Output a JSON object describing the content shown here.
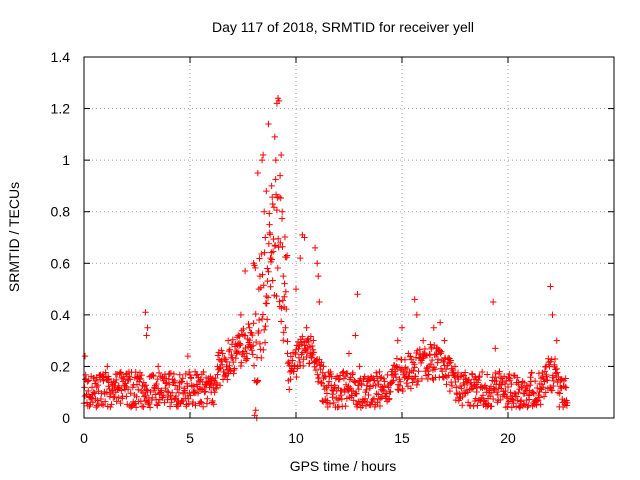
{
  "chart_data": {
    "type": "scatter",
    "title": "Day 117 of 2018, SRMTID for receiver yell",
    "xlabel": "GPS time / hours",
    "ylabel": "SRMTID / TECUs",
    "xlim": [
      0,
      25
    ],
    "ylim": [
      0,
      1.4
    ],
    "xticks": [
      0,
      5,
      10,
      15,
      20
    ],
    "xtick_labels": [
      "0",
      "5",
      "10",
      "15",
      "20"
    ],
    "yticks": [
      0,
      0.2,
      0.4,
      0.6,
      0.8,
      1.0,
      1.2,
      1.4
    ],
    "ytick_labels": [
      "0",
      "0.2",
      "0.4",
      "0.6",
      "0.8",
      "1",
      "1.2",
      "1.4"
    ],
    "grid": true,
    "marker": "+",
    "series": [
      {
        "name": "SRMTID",
        "color": "#ff0000",
        "marker": "+",
        "description": "Approximate reconstruction of the dense 30 s samples: baseline 0.05-0.2 TECU with a peak near 9 h reaching ~1.24 TECU",
        "points": [
          [
            0.05,
            0.24
          ],
          [
            0.3,
            0.08
          ],
          [
            0.6,
            0.12
          ],
          [
            0.9,
            0.05
          ],
          [
            1.1,
            0.2
          ],
          [
            1.15,
            0.15
          ],
          [
            1.5,
            0.1
          ],
          [
            2.0,
            0.12
          ],
          [
            2.5,
            0.13
          ],
          [
            2.9,
            0.41
          ],
          [
            2.95,
            0.32
          ],
          [
            3.0,
            0.35
          ],
          [
            3.5,
            0.2
          ],
          [
            4.0,
            0.17
          ],
          [
            4.5,
            0.12
          ],
          [
            4.9,
            0.24
          ],
          [
            5.5,
            0.15
          ],
          [
            6.0,
            0.1
          ],
          [
            6.3,
            0.2
          ],
          [
            6.8,
            0.3
          ],
          [
            7.2,
            0.25
          ],
          [
            7.4,
            0.4
          ],
          [
            7.6,
            0.57
          ],
          [
            7.8,
            0.35
          ],
          [
            8.0,
            0.6
          ],
          [
            8.05,
            0.01
          ],
          [
            8.1,
            0.03
          ],
          [
            8.15,
            0.0
          ],
          [
            8.2,
            0.95
          ],
          [
            8.25,
            0.5
          ],
          [
            8.3,
            0.55
          ],
          [
            8.4,
            1.0
          ],
          [
            8.45,
            1.02
          ],
          [
            8.5,
            0.8
          ],
          [
            8.55,
            0.7
          ],
          [
            8.6,
            0.88
          ],
          [
            8.65,
            0.58
          ],
          [
            8.7,
            1.14
          ],
          [
            8.75,
            0.75
          ],
          [
            8.8,
            0.62
          ],
          [
            8.85,
            0.9
          ],
          [
            8.9,
            0.83
          ],
          [
            9.0,
            1.09
          ],
          [
            9.05,
            1.0
          ],
          [
            9.1,
            1.22
          ],
          [
            9.15,
            1.24
          ],
          [
            9.2,
            1.23
          ],
          [
            9.25,
            0.94
          ],
          [
            9.3,
            1.02
          ],
          [
            9.35,
            0.8
          ],
          [
            9.4,
            0.55
          ],
          [
            9.45,
            0.47
          ],
          [
            9.5,
            0.35
          ],
          [
            9.6,
            0.25
          ],
          [
            9.8,
            0.2
          ],
          [
            10.0,
            0.5
          ],
          [
            10.2,
            0.62
          ],
          [
            10.3,
            0.71
          ],
          [
            10.4,
            0.7
          ],
          [
            10.5,
            0.35
          ],
          [
            10.7,
            0.25
          ],
          [
            10.9,
            0.66
          ],
          [
            11.0,
            0.6
          ],
          [
            11.05,
            0.55
          ],
          [
            11.1,
            0.45
          ],
          [
            11.3,
            0.2
          ],
          [
            12.0,
            0.15
          ],
          [
            12.5,
            0.25
          ],
          [
            12.8,
            0.32
          ],
          [
            12.9,
            0.48
          ],
          [
            13.0,
            0.2
          ],
          [
            13.5,
            0.15
          ],
          [
            14.0,
            0.12
          ],
          [
            14.5,
            0.18
          ],
          [
            14.8,
            0.3
          ],
          [
            15.0,
            0.35
          ],
          [
            15.3,
            0.25
          ],
          [
            15.6,
            0.46
          ],
          [
            15.7,
            0.4
          ],
          [
            16.0,
            0.3
          ],
          [
            16.5,
            0.35
          ],
          [
            16.8,
            0.37
          ],
          [
            17.0,
            0.3
          ],
          [
            17.5,
            0.2
          ],
          [
            18.0,
            0.15
          ],
          [
            18.5,
            0.13
          ],
          [
            19.0,
            0.1
          ],
          [
            19.3,
            0.45
          ],
          [
            19.4,
            0.27
          ],
          [
            19.6,
            0.18
          ],
          [
            20.0,
            0.12
          ],
          [
            20.5,
            0.1
          ],
          [
            21.0,
            0.09
          ],
          [
            21.5,
            0.08
          ],
          [
            21.8,
            0.2
          ],
          [
            22.0,
            0.51
          ],
          [
            22.1,
            0.4
          ],
          [
            22.3,
            0.3
          ],
          [
            22.5,
            0.15
          ],
          [
            22.7,
            0.12
          ]
        ]
      }
    ]
  }
}
